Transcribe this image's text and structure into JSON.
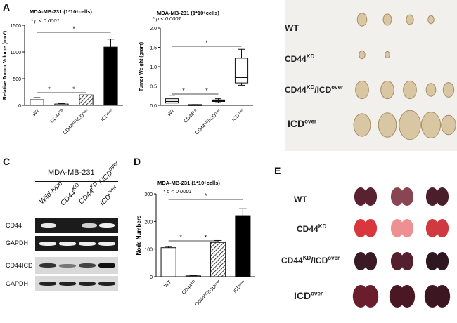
{
  "panels": {
    "A": "A",
    "B": "B",
    "C": "C",
    "D": "D",
    "E": "E"
  },
  "stat_note": "* p < 0.0001",
  "sig_star": "*",
  "chart_data": [
    {
      "id": "A-volume",
      "type": "bar",
      "title": "MDA-MB-231 (1*10⁶cells)",
      "ylabel": "Relative Tumor Volume (mm³)",
      "xlabel": "",
      "ylim": [
        0,
        1500
      ],
      "yticks": [
        0,
        500,
        1000,
        1500
      ],
      "categories": [
        "WT",
        "CD44KD",
        "CD44KD/ICDover",
        "ICDover"
      ],
      "category_labels": [
        [
          "WT",
          ""
        ],
        [
          "CD44",
          "KD"
        ],
        [
          "CD44",
          "KD",
          "/ICD",
          "over"
        ],
        [
          "ICD",
          "over"
        ]
      ],
      "values": [
        105,
        25,
        195,
        1090
      ],
      "errors": [
        40,
        10,
        75,
        150
      ],
      "fills": [
        "white",
        "white",
        "hatch",
        "black"
      ],
      "brackets": [
        [
          0,
          1,
          1
        ],
        [
          1,
          2,
          1
        ],
        [
          0,
          3,
          2
        ]
      ]
    },
    {
      "id": "A-weight",
      "type": "box",
      "title": "MDA-MB-231 (1*10⁶cells)",
      "ylabel": "Tumor Weight (gram)",
      "xlabel": "",
      "ylim": [
        0,
        2.0
      ],
      "yticks": [
        "0.0",
        "0.5",
        "1.0",
        "1.5",
        "2.0"
      ],
      "categories": [
        "WT",
        "CD44KD",
        "CD44KD/ICDover",
        "ICDover"
      ],
      "category_labels": [
        [
          "WT",
          ""
        ],
        [
          "CD44",
          "KD"
        ],
        [
          "CD44",
          "KD",
          "/ICD",
          "over"
        ],
        [
          "ICD",
          "over"
        ]
      ],
      "boxes": [
        {
          "min": 0.0,
          "q1": 0.06,
          "median": 0.1,
          "q3": 0.17,
          "max": 0.26
        },
        {
          "min": 0.0,
          "q1": 0.0,
          "median": 0.01,
          "q3": 0.02,
          "max": 0.02
        },
        {
          "min": 0.07,
          "q1": 0.1,
          "median": 0.12,
          "q3": 0.14,
          "max": 0.17
        },
        {
          "min": 0.52,
          "q1": 0.58,
          "median": 0.72,
          "q3": 1.22,
          "max": 1.45
        }
      ],
      "brackets": [
        [
          0,
          1,
          1
        ],
        [
          1,
          2,
          1
        ],
        [
          0,
          3,
          2
        ]
      ]
    },
    {
      "id": "D-nodes",
      "type": "bar",
      "title": "MDA-MB-231 (1*10⁶cells)",
      "ylabel": "Node Numbers",
      "xlabel": "",
      "ylim": [
        0,
        300
      ],
      "yticks": [
        0,
        100,
        200,
        300
      ],
      "categories": [
        "WT",
        "CD44KD",
        "CD44KD/ICDover",
        "ICDover"
      ],
      "category_labels": [
        [
          "WT",
          ""
        ],
        [
          "CD44",
          "KD"
        ],
        [
          "CD44",
          "KD",
          "/ICD",
          "over"
        ],
        [
          "ICD",
          "over"
        ]
      ],
      "values": [
        105,
        3,
        124,
        221
      ],
      "errors": [
        4,
        1,
        7,
        25
      ],
      "fills": [
        "white",
        "white",
        "hatch",
        "black"
      ],
      "brackets": [
        [
          0,
          1,
          1
        ],
        [
          1,
          2,
          1
        ],
        [
          0,
          3,
          2
        ]
      ]
    }
  ],
  "panel_b": {
    "rows": [
      {
        "base": "WT",
        "sup": ""
      },
      {
        "base": "CD44",
        "sup": "KD"
      },
      {
        "base": "CD44",
        "sup": "KD",
        "rest": "/ICD",
        "sup2": "over"
      },
      {
        "base": "ICD",
        "sup": "over"
      }
    ]
  },
  "panel_c": {
    "cell_line": "MDA-MB-231",
    "lanes": [
      {
        "text": "Wild-type",
        "sup": "",
        "rest": "",
        "sup2": ""
      },
      {
        "text": "CD44",
        "sup": "KD",
        "rest": "",
        "sup2": ""
      },
      {
        "text": "CD44",
        "sup": "KD",
        "rest": " / ICD",
        "sup2": "over"
      },
      {
        "text": "ICD",
        "sup": "over",
        "rest": "",
        "sup2": ""
      }
    ],
    "blots": [
      "CD44",
      "GAPDH",
      "CD44ICD",
      "GAPDH"
    ]
  },
  "panel_e": {
    "rows": [
      {
        "base": "WT",
        "sup": ""
      },
      {
        "base": "CD44",
        "sup": "KD"
      },
      {
        "base": "CD44",
        "sup": "KD",
        "rest": "/ICD",
        "sup2": "over"
      },
      {
        "base": "ICD",
        "sup": "over"
      }
    ]
  }
}
